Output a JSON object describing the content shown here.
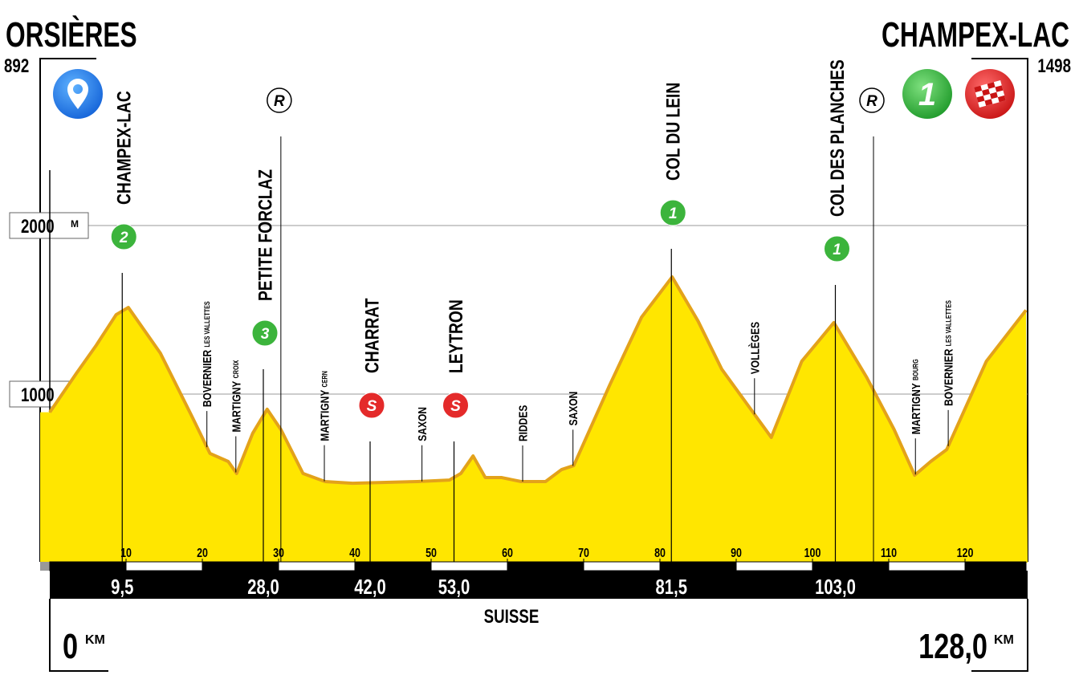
{
  "chart_data": {
    "type": "area",
    "start_name": "ORSIÈRES",
    "finish_name": "CHAMPEX-LAC",
    "country": "SUISSE",
    "elevation_unit": "M",
    "distance_unit": "KM",
    "color": "#ffe600",
    "line_color": "#e3a21a",
    "climb_color": "#3cb43c",
    "sprint_color": "#e42a2a",
    "finish_badge": 1,
    "total_distance": {
      "value": 128,
      "label": "128,0"
    },
    "x": [
      0,
      3.5,
      6.1,
      8.7,
      10.3,
      14.5,
      18.7,
      21,
      23.4,
      24.5,
      26.6,
      28.5,
      30.3,
      33.2,
      36.1,
      39.7,
      48.2,
      52.4,
      53.9,
      55.5,
      57.1,
      59.2,
      61.8,
      65,
      67.1,
      68.7,
      73.4,
      77.6,
      81.6,
      85,
      88.1,
      92.3,
      94.6,
      98.6,
      102.8,
      107.1,
      110.7,
      113.4,
      115.5,
      117.6,
      122.8,
      128
    ],
    "values": [
      892,
      1124,
      1290,
      1471,
      1514,
      1243,
      862,
      648,
      600,
      529,
      767,
      910,
      790,
      529,
      481,
      471,
      481,
      490,
      529,
      633,
      505,
      505,
      481,
      481,
      552,
      576,
      1052,
      1457,
      1695,
      1433,
      1148,
      886,
      743,
      1195,
      1424,
      1100,
      790,
      519,
      600,
      671,
      1195,
      1498
    ],
    "xlim": [
      0,
      128
    ],
    "xticks": [
      10,
      20,
      30,
      40,
      50,
      60,
      70,
      80,
      90,
      100,
      110,
      120
    ],
    "ylim": [
      0,
      3000
    ],
    "yticks": [
      1000,
      2000
    ],
    "grid": true,
    "points": [
      {
        "name": "CHAMPEX-LAC",
        "km": 9.5,
        "km_label": "9,5",
        "kind": "climb",
        "badge": 2
      },
      {
        "name": "PETITE FORCLAZ",
        "km": 28.0,
        "km_label": "28,0",
        "kind": "climb",
        "badge": 3
      },
      {
        "name": "CHARRAT",
        "km": 42.0,
        "km_label": "42,0",
        "kind": "sprint",
        "badge": "S"
      },
      {
        "name": "LEYTRON",
        "km": 53.0,
        "km_label": "53,0",
        "kind": "sprint",
        "badge": "S"
      },
      {
        "name": "COL DU LEIN",
        "km": 81.5,
        "km_label": "81,5",
        "kind": "climb",
        "badge": 1
      },
      {
        "name": "COL DES PLANCHES",
        "km": 103.0,
        "km_label": "103,0",
        "kind": "climb",
        "badge": 1
      }
    ],
    "r_markers": [
      {
        "label": "R",
        "km": 30.3
      },
      {
        "label": "R",
        "km": 108.0
      }
    ],
    "places": [
      {
        "name": "BOVERNIER",
        "sub": "LES VALLETTES",
        "km": 20.6
      },
      {
        "name": "MARTIGNY",
        "sub": "CROIX",
        "km": 24.4
      },
      {
        "name": "MARTIGNY",
        "sub": "CERN",
        "km": 36.0
      },
      {
        "name": "SAXON",
        "km": 48.8
      },
      {
        "name": "RIDDES",
        "km": 62.0
      },
      {
        "name": "SAXON",
        "km": 68.6
      },
      {
        "name": "VOLLÈGES",
        "km": 92.4
      },
      {
        "name": "MARTIGNY",
        "sub": "BOURG",
        "km": 113.5
      },
      {
        "name": "BOVERNIER",
        "sub": "LES VALLETTES",
        "km": 117.8
      }
    ]
  }
}
